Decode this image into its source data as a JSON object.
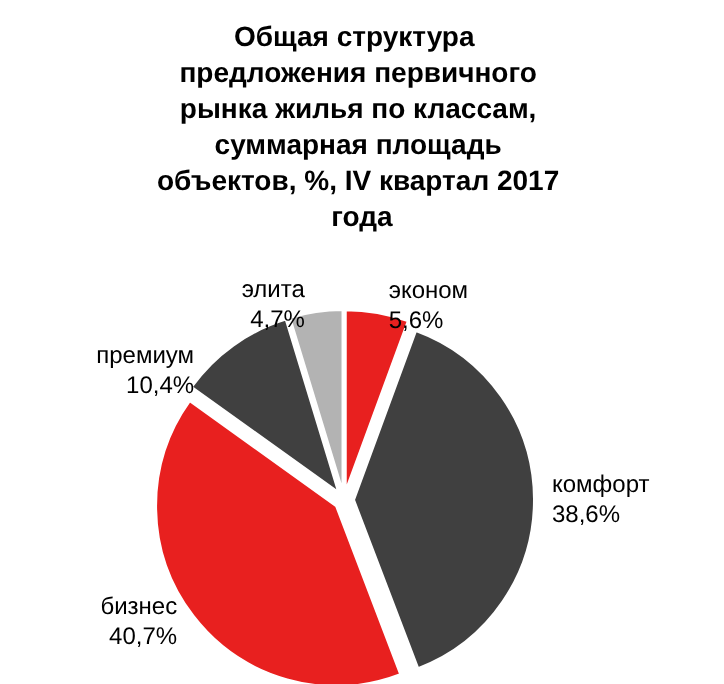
{
  "chart_data": {
    "type": "pie",
    "title": "Общая структура  предложения первичного рынка жилья по классам, суммарная площадь объектов, %, IV квартал 2017 года",
    "categories": [
      "эконом",
      "комфорт",
      "бизнес",
      "премиум",
      "элита"
    ],
    "values": [
      5.6,
      38.6,
      40.7,
      10.4,
      4.7
    ],
    "colors": [
      "#e8201f",
      "#404040",
      "#e8201f",
      "#404040",
      "#b3b3b3"
    ],
    "value_labels": [
      "5,6%",
      "38,6%",
      "40,7%",
      "10,4%",
      "4,7%"
    ]
  }
}
